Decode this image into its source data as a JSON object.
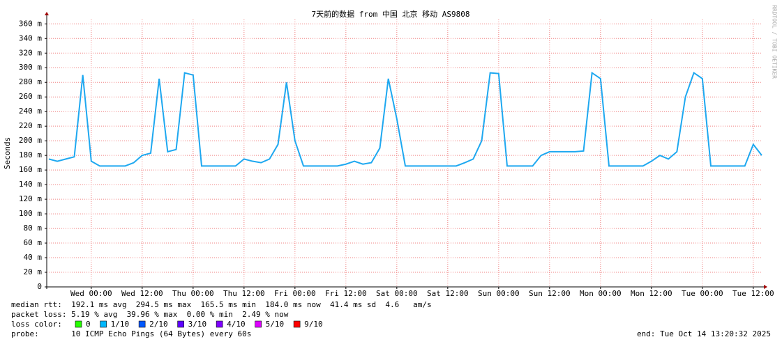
{
  "chart_data": {
    "type": "line",
    "title": "7天前的数据 from 中国 北京 移动 AS9808",
    "y_label": "Seconds",
    "watermark": "RRDTOOL / TOBI OETIKER",
    "categories": [
      null,
      null,
      null,
      null,
      null,
      "Wed 00:00",
      null,
      null,
      null,
      null,
      null,
      "Wed 12:00",
      null,
      null,
      null,
      null,
      null,
      "Thu 00:00",
      null,
      null,
      null,
      null,
      null,
      "Thu 12:00",
      null,
      null,
      null,
      null,
      null,
      "Fri 00:00",
      null,
      null,
      null,
      null,
      null,
      "Fri 12:00",
      null,
      null,
      null,
      null,
      null,
      "Sat 00:00",
      null,
      null,
      null,
      null,
      null,
      "Sat 12:00",
      null,
      null,
      null,
      null,
      null,
      "Sun 00:00",
      null,
      null,
      null,
      null,
      null,
      "Sun 12:00",
      null,
      null,
      null,
      null,
      null,
      "Mon 00:00",
      null,
      null,
      null,
      null,
      null,
      "Mon 12:00",
      null,
      null,
      null,
      null,
      null,
      "Tue 00:00",
      null,
      null,
      null,
      null,
      null,
      "Tue 12:00",
      null
    ],
    "series": [
      {
        "color": "#1ea8f0",
        "values": [
          0.175,
          0.172,
          0.175,
          0.178,
          0.29,
          0.172,
          0.1655,
          0.1655,
          0.1655,
          0.1655,
          0.17,
          0.18,
          0.183,
          0.285,
          0.185,
          0.188,
          0.293,
          0.29,
          0.1655,
          0.1655,
          0.1655,
          0.1655,
          0.1655,
          0.175,
          0.172,
          0.17,
          0.175,
          0.195,
          0.28,
          0.2,
          0.1655,
          0.1655,
          0.1655,
          0.1655,
          0.1655,
          0.168,
          0.172,
          0.168,
          0.17,
          0.19,
          0.285,
          0.23,
          0.1655,
          0.1655,
          0.1655,
          0.1655,
          0.1655,
          0.1655,
          0.1655,
          0.17,
          0.175,
          0.2,
          0.293,
          0.292,
          0.1655,
          0.1655,
          0.1655,
          0.1655,
          0.18,
          0.185,
          0.185,
          0.185,
          0.185,
          0.186,
          0.293,
          0.285,
          0.1655,
          0.1655,
          0.1655,
          0.1655,
          0.1655,
          0.172,
          0.18,
          0.175,
          0.185,
          0.26,
          0.293,
          0.285,
          0.1655,
          0.1655,
          0.1655,
          0.1655,
          0.1655,
          0.195,
          0.18
        ]
      }
    ],
    "ylim": [
      0,
      0.366
    ],
    "yticks": [
      0,
      {
        "value": 0.02,
        "label": "20 m"
      },
      {
        "value": 0.04,
        "label": "40 m"
      },
      {
        "value": 0.06,
        "label": "60 m"
      },
      {
        "value": 0.08,
        "label": "80 m"
      },
      {
        "value": 0.1,
        "label": "100 m"
      },
      {
        "value": 0.12,
        "label": "120 m"
      },
      {
        "value": 0.14,
        "label": "140 m"
      },
      {
        "value": 0.16,
        "label": "160 m"
      },
      {
        "value": 0.18,
        "label": "180 m"
      },
      {
        "value": 0.2,
        "label": "200 m"
      },
      {
        "value": 0.22,
        "label": "220 m"
      },
      {
        "value": 0.24,
        "label": "240 m"
      },
      {
        "value": 0.26,
        "label": "260 m"
      },
      {
        "value": 0.28,
        "label": "280 m"
      },
      {
        "value": 0.3,
        "label": "300 m"
      },
      {
        "value": 0.32,
        "label": "320 m"
      },
      {
        "value": 0.34,
        "label": "340 m"
      },
      {
        "value": 0.36,
        "label": "360 m"
      }
    ],
    "grid": true,
    "stats": [
      "median rtt:  192.1 ms avg  294.5 ms max  165.5 ms min  184.0 ms now  41.4 ms sd  4.6   am/s",
      "packet loss: 5.19 % avg  39.96 % max  0.00 % min  2.49 % now"
    ],
    "loss_color_label": "loss color:",
    "loss_colors": [
      {
        "label": "0",
        "color": "#26ff00"
      },
      {
        "label": "1/10",
        "color": "#00b8ff"
      },
      {
        "label": "2/10",
        "color": "#0059ff"
      },
      {
        "label": "3/10",
        "color": "#5e00ff"
      },
      {
        "label": "4/10",
        "color": "#7e00ff"
      },
      {
        "label": "5/10",
        "color": "#dd00ff"
      },
      {
        "label": "9/10",
        "color": "#ff0000"
      }
    ],
    "probe": "probe:       10 ICMP Echo Pings (64 Bytes) every 60s",
    "end": "end: Tue Oct 14 13:20:32 2025"
  }
}
